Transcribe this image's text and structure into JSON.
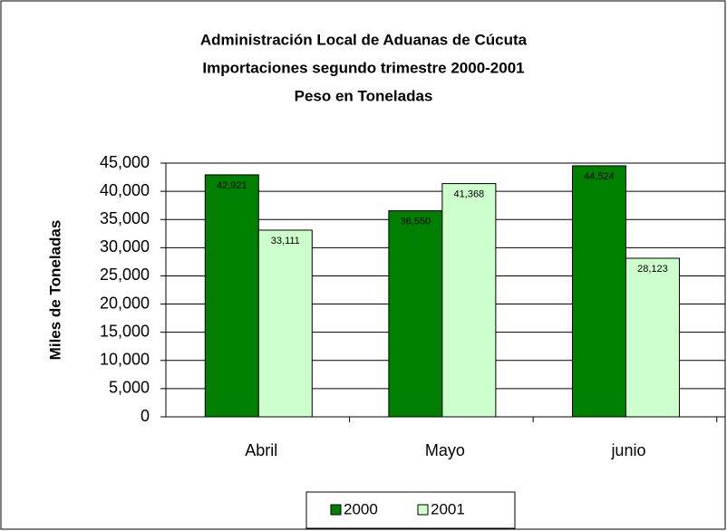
{
  "chart_data": {
    "type": "bar",
    "title": [
      "Administración Local de Aduanas de Cúcuta",
      "Importaciones segundo trimestre 2000-2001",
      "Peso en Toneladas"
    ],
    "y_label": "Miles de Toneladas",
    "categories": [
      "Abril",
      "Mayo",
      "junio"
    ],
    "series": [
      {
        "name": "2000",
        "color": "#008000",
        "values": [
          42921,
          36550,
          44524
        ],
        "value_labels": [
          "42,921",
          "36,550",
          "44,524"
        ]
      },
      {
        "name": "2001",
        "color": "#ccffcc",
        "values": [
          33111,
          41368,
          28123
        ],
        "value_labels": [
          "33,111",
          "41,368",
          "28,123"
        ]
      }
    ],
    "ylim": [
      0,
      45000
    ],
    "yticks": [
      {
        "value": 0,
        "label": "0"
      },
      {
        "value": 5000,
        "label": "5,000"
      },
      {
        "value": 10000,
        "label": "10,000"
      },
      {
        "value": 15000,
        "label": "15,000"
      },
      {
        "value": 20000,
        "label": "20,000"
      },
      {
        "value": 25000,
        "label": "25,000"
      },
      {
        "value": 30000,
        "label": "30,000"
      },
      {
        "value": 35000,
        "label": "35,000"
      },
      {
        "value": 40000,
        "label": "40,000"
      },
      {
        "value": 45000,
        "label": "45,000"
      }
    ],
    "grid": true,
    "legend": "bottom"
  }
}
